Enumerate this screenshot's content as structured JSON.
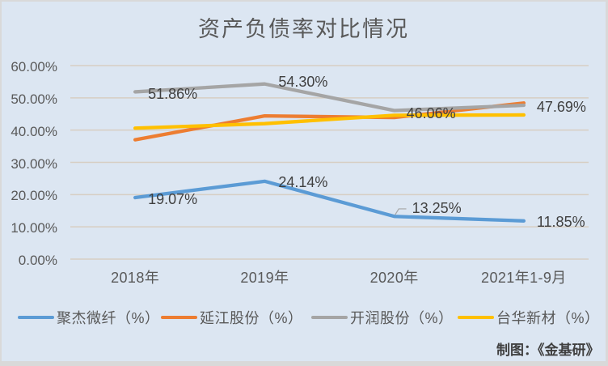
{
  "chart_data": {
    "type": "line",
    "title": "资产负债率对比情况",
    "categories": [
      "2018年",
      "2019年",
      "2020年",
      "2021年1-9月"
    ],
    "y_axis": {
      "min": 0,
      "max": 60,
      "step": 10,
      "tick_labels": [
        "0.00%",
        "10.00%",
        "20.00%",
        "30.00%",
        "40.00%",
        "50.00%",
        "60.00%"
      ]
    },
    "grid": true,
    "legend_position": "bottom",
    "series": [
      {
        "name": "聚杰微纤（%）",
        "color": "#5B9BD5",
        "values": [
          19.07,
          24.14,
          13.25,
          11.85
        ],
        "data_labels": [
          {
            "text": "19.07%",
            "dx": 16,
            "dy": 1.5
          },
          {
            "text": "24.14%",
            "dx": 17,
            "dy": 1.5
          },
          {
            "text": "13.25%",
            "dx": 22,
            "dy": -10.7,
            "leader": true
          },
          {
            "text": "11.85%",
            "dx": 16,
            "dy": 1.5
          }
        ]
      },
      {
        "name": "延江股份（%）",
        "color": "#ED7D31",
        "values": [
          37.0,
          44.4,
          43.9,
          48.4
        ],
        "data_labels": null
      },
      {
        "name": "开润股份（%）",
        "color": "#A5A5A5",
        "values": [
          51.86,
          54.3,
          46.06,
          47.69
        ],
        "data_labels": [
          {
            "text": "51.86%",
            "dx": 16,
            "dy": 2.5
          },
          {
            "text": "54.30%",
            "dx": 17,
            "dy": -3
          },
          {
            "text": "46.06%",
            "dx": 15,
            "dy": 3
          },
          {
            "text": "47.69%",
            "dx": 16,
            "dy": 1.5
          }
        ]
      },
      {
        "name": "台华新材（%）",
        "color": "#FFC000",
        "values": [
          40.6,
          42.0,
          44.6,
          44.7
        ],
        "data_labels": null
      }
    ],
    "credit": "制图：《金基研》"
  },
  "style": {
    "panel_background": "#dce6f2",
    "frame_color": "#d9d9d9",
    "gridline_color": "#d7cec3",
    "leader_color": "#a6a6a6",
    "title_color": "#595959",
    "axis_label_color": "#595959",
    "data_label_color": "#404040",
    "credit_color": "#404040"
  }
}
